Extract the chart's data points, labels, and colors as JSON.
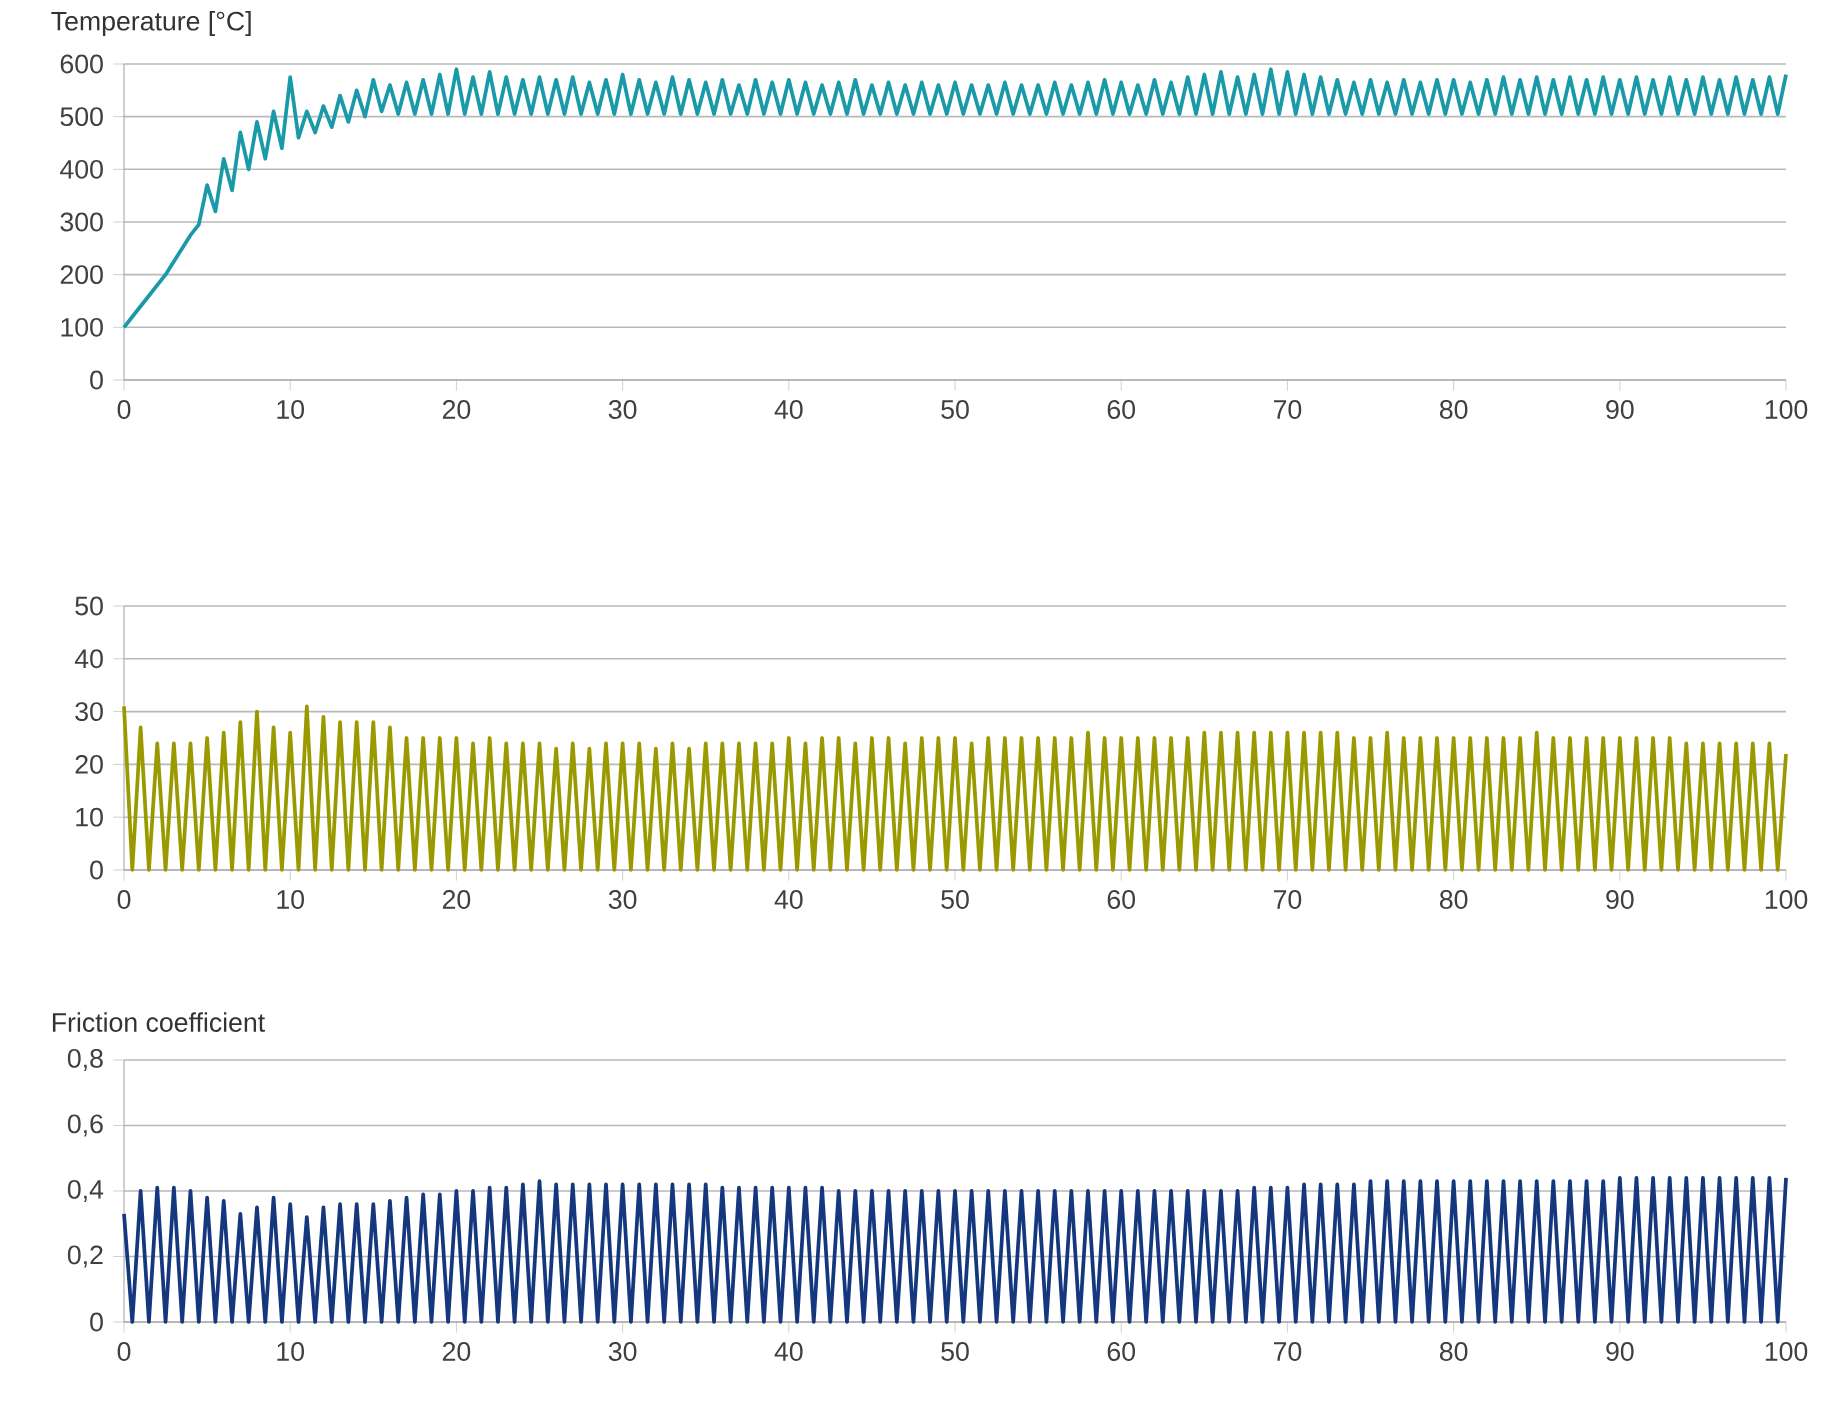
{
  "chart_data": [
    {
      "type": "line",
      "title": "Temperature [°C]",
      "color": "#1a9aa8",
      "grid": "y",
      "marker": "none",
      "line_style": "solid",
      "xlim": [
        0,
        100
      ],
      "xticks": [
        0,
        10,
        20,
        30,
        40,
        50,
        60,
        70,
        80,
        90,
        100
      ],
      "ylim": [
        0,
        600
      ],
      "yticks": [
        0,
        100,
        200,
        300,
        400,
        500,
        600
      ],
      "x": [
        0,
        0.5,
        1,
        1.5,
        2,
        2.5,
        3,
        3.5,
        4,
        4.5,
        5,
        5.5,
        6,
        6.5,
        7,
        7.5,
        8,
        8.5,
        9,
        9.5,
        10,
        10.5,
        11,
        11.5,
        12,
        12.5,
        13,
        13.5,
        14,
        14.5,
        15,
        15.5,
        16,
        16.5,
        17,
        17.5,
        18,
        18.5,
        19,
        19.5,
        20,
        20.5,
        21,
        21.5,
        22,
        22.5,
        23,
        23.5,
        24,
        24.5,
        25,
        25.5,
        26,
        26.5,
        27,
        27.5,
        28,
        28.5,
        29,
        29.5,
        30,
        30.5,
        31,
        31.5,
        32,
        32.5,
        33,
        33.5,
        34,
        34.5,
        35,
        35.5,
        36,
        36.5,
        37,
        37.5,
        38,
        38.5,
        39,
        39.5,
        40,
        40.5,
        41,
        41.5,
        42,
        42.5,
        43,
        43.5,
        44,
        44.5,
        45,
        45.5,
        46,
        46.5,
        47,
        47.5,
        48,
        48.5,
        49,
        49.5,
        50,
        50.5,
        51,
        51.5,
        52,
        52.5,
        53,
        53.5,
        54,
        54.5,
        55,
        55.5,
        56,
        56.5,
        57,
        57.5,
        58,
        58.5,
        59,
        59.5,
        60,
        60.5,
        61,
        61.5,
        62,
        62.5,
        63,
        63.5,
        64,
        64.5,
        65,
        65.5,
        66,
        66.5,
        67,
        67.5,
        68,
        68.5,
        69,
        69.5,
        70,
        70.5,
        71,
        71.5,
        72,
        72.5,
        73,
        73.5,
        74,
        74.5,
        75,
        75.5,
        76,
        76.5,
        77,
        77.5,
        78,
        78.5,
        79,
        79.5,
        80,
        80.5,
        81,
        81.5,
        82,
        82.5,
        83,
        83.5,
        84,
        84.5,
        85,
        85.5,
        86,
        86.5,
        87,
        87.5,
        88,
        88.5,
        89,
        89.5,
        90,
        90.5,
        91,
        91.5,
        92,
        92.5,
        93,
        93.5,
        94,
        94.5,
        95,
        95.5,
        96,
        96.5,
        97,
        97.5,
        98,
        98.5,
        99,
        99.5,
        100
      ],
      "values": [
        100,
        120,
        140,
        160,
        180,
        200,
        225,
        250,
        275,
        295,
        370,
        320,
        420,
        360,
        470,
        400,
        490,
        420,
        510,
        440,
        575,
        460,
        510,
        470,
        520,
        480,
        540,
        490,
        550,
        500,
        570,
        510,
        560,
        505,
        565,
        505,
        570,
        505,
        580,
        505,
        590,
        505,
        575,
        505,
        585,
        505,
        575,
        505,
        570,
        505,
        575,
        505,
        570,
        505,
        575,
        505,
        565,
        505,
        570,
        505,
        580,
        505,
        570,
        505,
        565,
        505,
        575,
        505,
        570,
        505,
        565,
        505,
        570,
        505,
        560,
        505,
        570,
        505,
        565,
        505,
        570,
        505,
        565,
        505,
        560,
        505,
        565,
        505,
        570,
        505,
        560,
        505,
        565,
        505,
        560,
        505,
        565,
        505,
        560,
        505,
        565,
        505,
        560,
        505,
        560,
        505,
        565,
        505,
        560,
        505,
        560,
        505,
        565,
        505,
        560,
        505,
        565,
        505,
        570,
        505,
        565,
        505,
        560,
        505,
        570,
        505,
        565,
        505,
        575,
        505,
        580,
        505,
        585,
        505,
        575,
        505,
        580,
        505,
        590,
        505,
        585,
        505,
        580,
        505,
        575,
        505,
        570,
        505,
        565,
        505,
        570,
        505,
        565,
        505,
        570,
        505,
        565,
        505,
        570,
        505,
        570,
        505,
        565,
        505,
        570,
        505,
        575,
        505,
        570,
        505,
        575,
        505,
        570,
        505,
        575,
        505,
        570,
        505,
        575,
        505,
        570,
        505,
        575,
        505,
        570,
        505,
        575,
        505,
        570,
        505,
        575,
        505,
        570,
        505,
        575,
        505,
        570,
        505,
        575,
        505,
        580
      ]
    },
    {
      "type": "line",
      "color": "#9a9a00",
      "grid": "y",
      "marker": "none",
      "line_style": "solid",
      "xlim": [
        0,
        100
      ],
      "xticks": [
        0,
        10,
        20,
        30,
        40,
        50,
        60,
        70,
        80,
        90,
        100
      ],
      "ylim": [
        0,
        50
      ],
      "yticks": [
        0,
        10,
        20,
        30,
        40,
        50
      ],
      "x": [
        0,
        0.5,
        1,
        1.5,
        2,
        2.5,
        3,
        3.5,
        4,
        4.5,
        5,
        5.5,
        6,
        6.5,
        7,
        7.5,
        8,
        8.5,
        9,
        9.5,
        10,
        10.5,
        11,
        11.5,
        12,
        12.5,
        13,
        13.5,
        14,
        14.5,
        15,
        15.5,
        16,
        16.5,
        17,
        17.5,
        18,
        18.5,
        19,
        19.5,
        20,
        20.5,
        21,
        21.5,
        22,
        22.5,
        23,
        23.5,
        24,
        24.5,
        25,
        25.5,
        26,
        26.5,
        27,
        27.5,
        28,
        28.5,
        29,
        29.5,
        30,
        30.5,
        31,
        31.5,
        32,
        32.5,
        33,
        33.5,
        34,
        34.5,
        35,
        35.5,
        36,
        36.5,
        37,
        37.5,
        38,
        38.5,
        39,
        39.5,
        40,
        40.5,
        41,
        41.5,
        42,
        42.5,
        43,
        43.5,
        44,
        44.5,
        45,
        45.5,
        46,
        46.5,
        47,
        47.5,
        48,
        48.5,
        49,
        49.5,
        50,
        50.5,
        51,
        51.5,
        52,
        52.5,
        53,
        53.5,
        54,
        54.5,
        55,
        55.5,
        56,
        56.5,
        57,
        57.5,
        58,
        58.5,
        59,
        59.5,
        60,
        60.5,
        61,
        61.5,
        62,
        62.5,
        63,
        63.5,
        64,
        64.5,
        65,
        65.5,
        66,
        66.5,
        67,
        67.5,
        68,
        68.5,
        69,
        69.5,
        70,
        70.5,
        71,
        71.5,
        72,
        72.5,
        73,
        73.5,
        74,
        74.5,
        75,
        75.5,
        76,
        76.5,
        77,
        77.5,
        78,
        78.5,
        79,
        79.5,
        80,
        80.5,
        81,
        81.5,
        82,
        82.5,
        83,
        83.5,
        84,
        84.5,
        85,
        85.5,
        86,
        86.5,
        87,
        87.5,
        88,
        88.5,
        89,
        89.5,
        90,
        90.5,
        91,
        91.5,
        92,
        92.5,
        93,
        93.5,
        94,
        94.5,
        95,
        95.5,
        96,
        96.5,
        97,
        97.5,
        98,
        98.5,
        99,
        99.5,
        100
      ],
      "values": [
        31,
        0,
        27,
        0,
        24,
        0,
        24,
        0,
        24,
        0,
        25,
        0,
        26,
        0,
        28,
        0,
        30,
        0,
        27,
        0,
        26,
        0,
        31,
        0,
        29,
        0,
        28,
        0,
        28,
        0,
        28,
        0,
        27,
        0,
        25,
        0,
        25,
        0,
        25,
        0,
        25,
        0,
        24,
        0,
        25,
        0,
        24,
        0,
        24,
        0,
        24,
        0,
        23,
        0,
        24,
        0,
        23,
        0,
        24,
        0,
        24,
        0,
        24,
        0,
        23,
        0,
        24,
        0,
        23,
        0,
        24,
        0,
        24,
        0,
        24,
        0,
        24,
        0,
        24,
        0,
        25,
        0,
        24,
        0,
        25,
        0,
        25,
        0,
        24,
        0,
        25,
        0,
        25,
        0,
        24,
        0,
        25,
        0,
        25,
        0,
        25,
        0,
        24,
        0,
        25,
        0,
        25,
        0,
        25,
        0,
        25,
        0,
        25,
        0,
        25,
        0,
        26,
        0,
        25,
        0,
        25,
        0,
        25,
        0,
        25,
        0,
        25,
        0,
        25,
        0,
        26,
        0,
        26,
        0,
        26,
        0,
        26,
        0,
        26,
        0,
        26,
        0,
        26,
        0,
        26,
        0,
        26,
        0,
        25,
        0,
        25,
        0,
        26,
        0,
        25,
        0,
        25,
        0,
        25,
        0,
        25,
        0,
        25,
        0,
        25,
        0,
        25,
        0,
        25,
        0,
        26,
        0,
        25,
        0,
        25,
        0,
        25,
        0,
        25,
        0,
        25,
        0,
        25,
        0,
        25,
        0,
        25,
        0,
        24,
        0,
        24,
        0,
        24,
        0,
        24,
        0,
        24,
        0,
        24,
        0,
        22
      ]
    },
    {
      "type": "line",
      "title": "Friction coefficient",
      "color": "#14377d",
      "grid": "y",
      "marker": "none",
      "line_style": "solid",
      "xlim": [
        0,
        100
      ],
      "xticks": [
        0,
        10,
        20,
        30,
        40,
        50,
        60,
        70,
        80,
        90,
        100
      ],
      "ylim": [
        0,
        0.8
      ],
      "yticks": [
        0,
        {
          "value": 0.2,
          "label": "0,2"
        },
        {
          "value": 0.4,
          "label": "0,4"
        },
        {
          "value": 0.6,
          "label": "0,6"
        },
        {
          "value": 0.8,
          "label": "0,8"
        }
      ],
      "x": [
        0,
        0.5,
        1,
        1.5,
        2,
        2.5,
        3,
        3.5,
        4,
        4.5,
        5,
        5.5,
        6,
        6.5,
        7,
        7.5,
        8,
        8.5,
        9,
        9.5,
        10,
        10.5,
        11,
        11.5,
        12,
        12.5,
        13,
        13.5,
        14,
        14.5,
        15,
        15.5,
        16,
        16.5,
        17,
        17.5,
        18,
        18.5,
        19,
        19.5,
        20,
        20.5,
        21,
        21.5,
        22,
        22.5,
        23,
        23.5,
        24,
        24.5,
        25,
        25.5,
        26,
        26.5,
        27,
        27.5,
        28,
        28.5,
        29,
        29.5,
        30,
        30.5,
        31,
        31.5,
        32,
        32.5,
        33,
        33.5,
        34,
        34.5,
        35,
        35.5,
        36,
        36.5,
        37,
        37.5,
        38,
        38.5,
        39,
        39.5,
        40,
        40.5,
        41,
        41.5,
        42,
        42.5,
        43,
        43.5,
        44,
        44.5,
        45,
        45.5,
        46,
        46.5,
        47,
        47.5,
        48,
        48.5,
        49,
        49.5,
        50,
        50.5,
        51,
        51.5,
        52,
        52.5,
        53,
        53.5,
        54,
        54.5,
        55,
        55.5,
        56,
        56.5,
        57,
        57.5,
        58,
        58.5,
        59,
        59.5,
        60,
        60.5,
        61,
        61.5,
        62,
        62.5,
        63,
        63.5,
        64,
        64.5,
        65,
        65.5,
        66,
        66.5,
        67,
        67.5,
        68,
        68.5,
        69,
        69.5,
        70,
        70.5,
        71,
        71.5,
        72,
        72.5,
        73,
        73.5,
        74,
        74.5,
        75,
        75.5,
        76,
        76.5,
        77,
        77.5,
        78,
        78.5,
        79,
        79.5,
        80,
        80.5,
        81,
        81.5,
        82,
        82.5,
        83,
        83.5,
        84,
        84.5,
        85,
        85.5,
        86,
        86.5,
        87,
        87.5,
        88,
        88.5,
        89,
        89.5,
        90,
        90.5,
        91,
        91.5,
        92,
        92.5,
        93,
        93.5,
        94,
        94.5,
        95,
        95.5,
        96,
        96.5,
        97,
        97.5,
        98,
        98.5,
        99,
        99.5,
        100
      ],
      "values": [
        0.33,
        0,
        0.4,
        0,
        0.41,
        0,
        0.41,
        0,
        0.4,
        0,
        0.38,
        0,
        0.37,
        0,
        0.33,
        0,
        0.35,
        0,
        0.38,
        0,
        0.36,
        0,
        0.32,
        0,
        0.35,
        0,
        0.36,
        0,
        0.36,
        0,
        0.36,
        0,
        0.37,
        0,
        0.38,
        0,
        0.39,
        0,
        0.39,
        0,
        0.4,
        0,
        0.4,
        0,
        0.41,
        0,
        0.41,
        0,
        0.42,
        0,
        0.43,
        0,
        0.42,
        0,
        0.42,
        0,
        0.42,
        0,
        0.42,
        0,
        0.42,
        0,
        0.42,
        0,
        0.42,
        0,
        0.42,
        0,
        0.42,
        0,
        0.42,
        0,
        0.41,
        0,
        0.41,
        0,
        0.41,
        0,
        0.41,
        0,
        0.41,
        0,
        0.41,
        0,
        0.41,
        0,
        0.4,
        0,
        0.4,
        0,
        0.4,
        0,
        0.4,
        0,
        0.4,
        0,
        0.4,
        0,
        0.4,
        0,
        0.4,
        0,
        0.4,
        0,
        0.4,
        0,
        0.4,
        0,
        0.4,
        0,
        0.4,
        0,
        0.4,
        0,
        0.4,
        0,
        0.4,
        0,
        0.4,
        0,
        0.4,
        0,
        0.4,
        0,
        0.4,
        0,
        0.4,
        0,
        0.4,
        0,
        0.4,
        0,
        0.4,
        0,
        0.4,
        0,
        0.41,
        0,
        0.41,
        0,
        0.41,
        0,
        0.42,
        0,
        0.42,
        0,
        0.42,
        0,
        0.42,
        0,
        0.43,
        0,
        0.43,
        0,
        0.43,
        0,
        0.43,
        0,
        0.43,
        0,
        0.43,
        0,
        0.43,
        0,
        0.43,
        0,
        0.43,
        0,
        0.43,
        0,
        0.43,
        0,
        0.43,
        0,
        0.43,
        0,
        0.43,
        0,
        0.43,
        0,
        0.44,
        0,
        0.44,
        0,
        0.44,
        0,
        0.44,
        0,
        0.44,
        0,
        0.44,
        0,
        0.44,
        0,
        0.44,
        0,
        0.44,
        0,
        0.44,
        0,
        0.44
      ]
    }
  ]
}
